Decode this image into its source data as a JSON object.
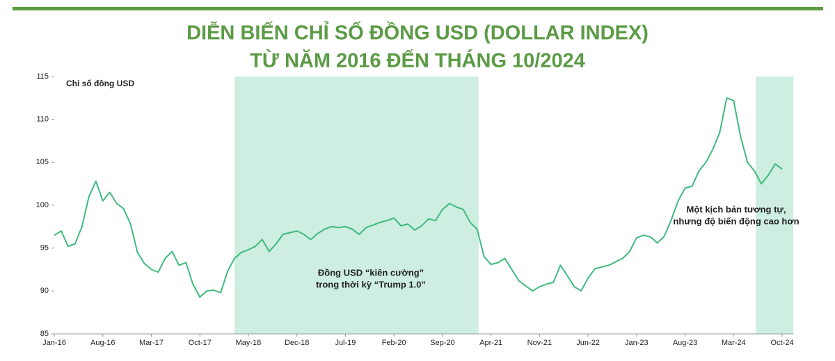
{
  "chart_data": {
    "type": "line",
    "title": [
      "DIỄN BIẾN CHỈ SỐ ĐỒNG USD (DOLLAR INDEX)",
      "TỪ NĂM 2016 ĐẾN THÁNG 10/2024"
    ],
    "y_label": "Chỉ số đồng USD",
    "categories": [
      "Jan-16",
      null,
      null,
      null,
      null,
      null,
      null,
      "Aug-16",
      null,
      null,
      null,
      null,
      null,
      null,
      "Mar-17",
      null,
      null,
      null,
      null,
      null,
      null,
      "Oct-17",
      null,
      null,
      null,
      null,
      null,
      null,
      "May-18",
      null,
      null,
      null,
      null,
      null,
      null,
      "Dec-18",
      null,
      null,
      null,
      null,
      null,
      null,
      "Jul-19",
      null,
      null,
      null,
      null,
      null,
      null,
      "Feb-20",
      null,
      null,
      null,
      null,
      null,
      null,
      "Sep-20",
      null,
      null,
      null,
      null,
      null,
      null,
      "Apr-21",
      null,
      null,
      null,
      null,
      null,
      null,
      "Nov-21",
      null,
      null,
      null,
      null,
      null,
      null,
      "Jun-22",
      null,
      null,
      null,
      null,
      null,
      null,
      "Jan-23",
      null,
      null,
      null,
      null,
      null,
      null,
      "Aug-23",
      null,
      null,
      null,
      null,
      null,
      null,
      "Mar-24",
      null,
      null,
      null,
      null,
      null,
      null,
      "Oct-24"
    ],
    "values": [
      96.5,
      97,
      95.2,
      95.5,
      97.5,
      101,
      102.8,
      100.5,
      101.5,
      100.2,
      99.6,
      97.8,
      94.5,
      93.2,
      92.5,
      92.2,
      93.8,
      94.6,
      93,
      93.3,
      90.8,
      89.3,
      90,
      90.1,
      89.8,
      92.3,
      93.8,
      94.5,
      94.8,
      95.2,
      96,
      94.6,
      95.5,
      96.6,
      96.8,
      97,
      96.6,
      96,
      96.7,
      97.2,
      97.5,
      97.4,
      97.5,
      97.2,
      96.6,
      97.4,
      97.7,
      98,
      98.2,
      98.5,
      97.6,
      97.8,
      97.1,
      97.6,
      98.4,
      98.2,
      99.5,
      100.2,
      99.8,
      99.5,
      98,
      97.2,
      94,
      93.1,
      93.3,
      93.8,
      92.5,
      91.2,
      90.6,
      90,
      90.5,
      90.8,
      91,
      93,
      91.8,
      90.5,
      90,
      91.5,
      92.6,
      92.8,
      93,
      93.4,
      93.8,
      94.6,
      96.2,
      96.5,
      96.3,
      95.6,
      96.4,
      98.3,
      100.5,
      102,
      102.2,
      104,
      105,
      106.5,
      108.5,
      112.5,
      112.2,
      108,
      105,
      104,
      102.5,
      103.5,
      104.8,
      104.2
    ],
    "color": "#3dbb7c",
    "xlim": [
      0,
      106.6
    ],
    "ylim": [
      85,
      115
    ],
    "yticks": [
      85,
      90,
      95,
      100,
      105,
      110,
      115
    ],
    "grid": false,
    "highlights": [
      {
        "from": 26,
        "to": 61.2,
        "color": "#cdeee0"
      },
      {
        "from": 101.2,
        "to": 106.6,
        "color": "#cdeee0"
      }
    ],
    "annotations": [
      [
        "Đồng USD “kiên cường”",
        "trong thời kỳ “Trump 1.0”"
      ],
      [
        "Một kịch bản tương tự,",
        "nhưng độ biến động cao hơn"
      ]
    ]
  }
}
